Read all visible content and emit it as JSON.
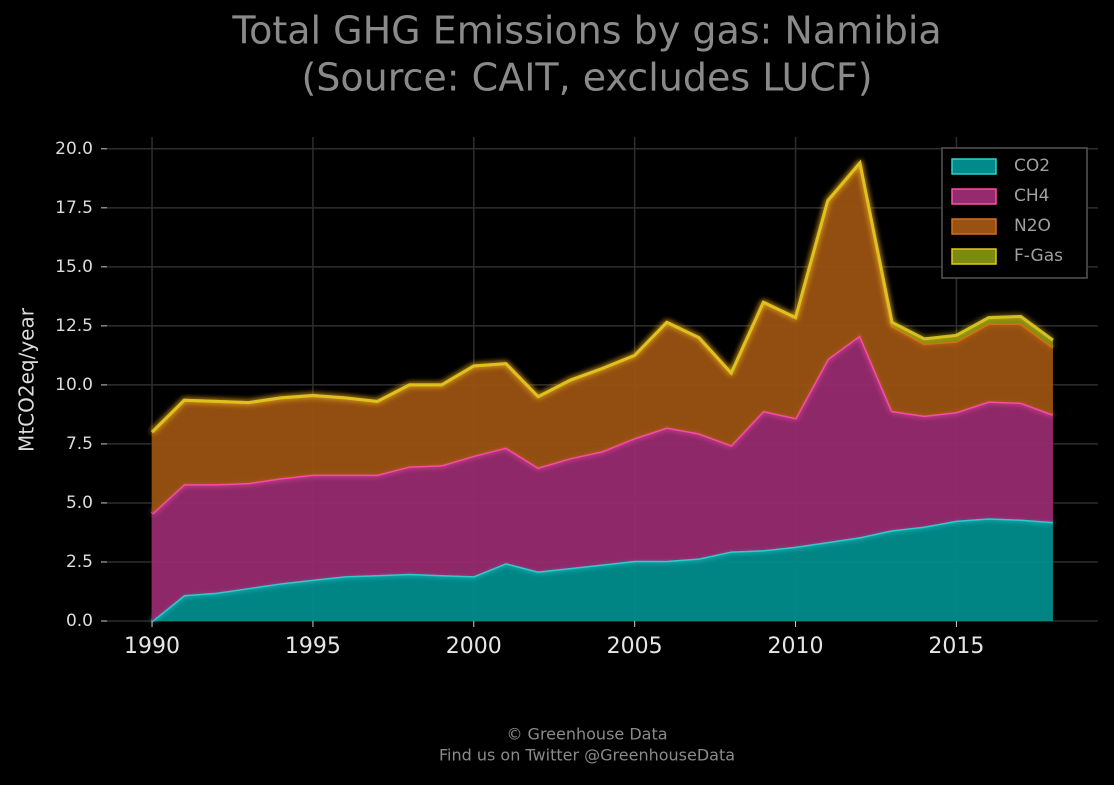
{
  "chart_data": {
    "type": "stacked_area",
    "title": "Total GHG Emissions by gas: Namibia",
    "subtitle": "(Source: CAIT, excludes LUCF)",
    "y_label": "MtCO2eq/year",
    "footer": [
      "© Greenhouse Data",
      "Find us on Twitter @GreenhouseData"
    ],
    "x": [
      1990,
      1991,
      1992,
      1993,
      1994,
      1995,
      1996,
      1997,
      1998,
      1999,
      2000,
      2001,
      2002,
      2003,
      2004,
      2005,
      2006,
      2007,
      2008,
      2009,
      2010,
      2011,
      2012,
      2013,
      2014,
      2015,
      2016,
      2017,
      2018
    ],
    "xlim": [
      1988.6,
      2019.4
    ],
    "xticks": [
      1990,
      1995,
      2000,
      2005,
      2010,
      2015
    ],
    "ylim": [
      0,
      20.5
    ],
    "yticks": [
      {
        "value": 0,
        "label": "0.0"
      },
      2.5,
      {
        "value": 5,
        "label": "5.0"
      },
      7.5,
      {
        "value": 10,
        "label": "10.0"
      },
      12.5,
      {
        "value": 15,
        "label": "15.0"
      },
      17.5,
      {
        "value": 20,
        "label": "20.0"
      }
    ],
    "grid": true,
    "legend": "upper right",
    "series": [
      {
        "name": "CO2",
        "color": "#008b8b",
        "line_color": "#2fd0d0",
        "values": [
          0.0,
          1.1,
          1.2,
          1.4,
          1.6,
          1.75,
          1.9,
          1.95,
          2.0,
          1.95,
          1.9,
          2.45,
          2.1,
          2.25,
          2.4,
          2.55,
          2.55,
          2.65,
          2.95,
          3.0,
          3.15,
          3.35,
          3.55,
          3.85,
          4.0,
          4.25,
          4.35,
          4.3,
          4.2
        ]
      },
      {
        "name": "CH4",
        "color": "#962a6e",
        "line_color": "#ff4fa8",
        "values": [
          4.55,
          4.7,
          4.6,
          4.45,
          4.45,
          4.45,
          4.3,
          4.25,
          4.55,
          4.65,
          5.1,
          4.9,
          4.4,
          4.65,
          4.8,
          5.2,
          5.65,
          5.3,
          4.5,
          5.9,
          5.45,
          7.75,
          8.55,
          5.05,
          4.7,
          4.6,
          4.95,
          4.95,
          4.55
        ]
      },
      {
        "name": "N2O",
        "color": "#9a5212",
        "line_color": "#d86e1a",
        "values": [
          3.45,
          3.55,
          3.5,
          3.4,
          3.4,
          3.35,
          3.25,
          3.1,
          3.45,
          3.4,
          3.8,
          3.55,
          3.0,
          3.3,
          3.5,
          3.5,
          4.45,
          4.05,
          3.05,
          4.6,
          4.25,
          6.7,
          7.3,
          3.6,
          3.05,
          3.0,
          3.3,
          3.35,
          2.85
        ]
      },
      {
        "name": "F-Gas",
        "color": "#7b8a10",
        "line_color": "#e0c820",
        "values": [
          0,
          0,
          0,
          0,
          0,
          0,
          0,
          0,
          0,
          0,
          0,
          0,
          0,
          0,
          0,
          0,
          0,
          0,
          0,
          0,
          0,
          0,
          0,
          0.15,
          0.2,
          0.25,
          0.25,
          0.3,
          0.3
        ]
      }
    ]
  }
}
